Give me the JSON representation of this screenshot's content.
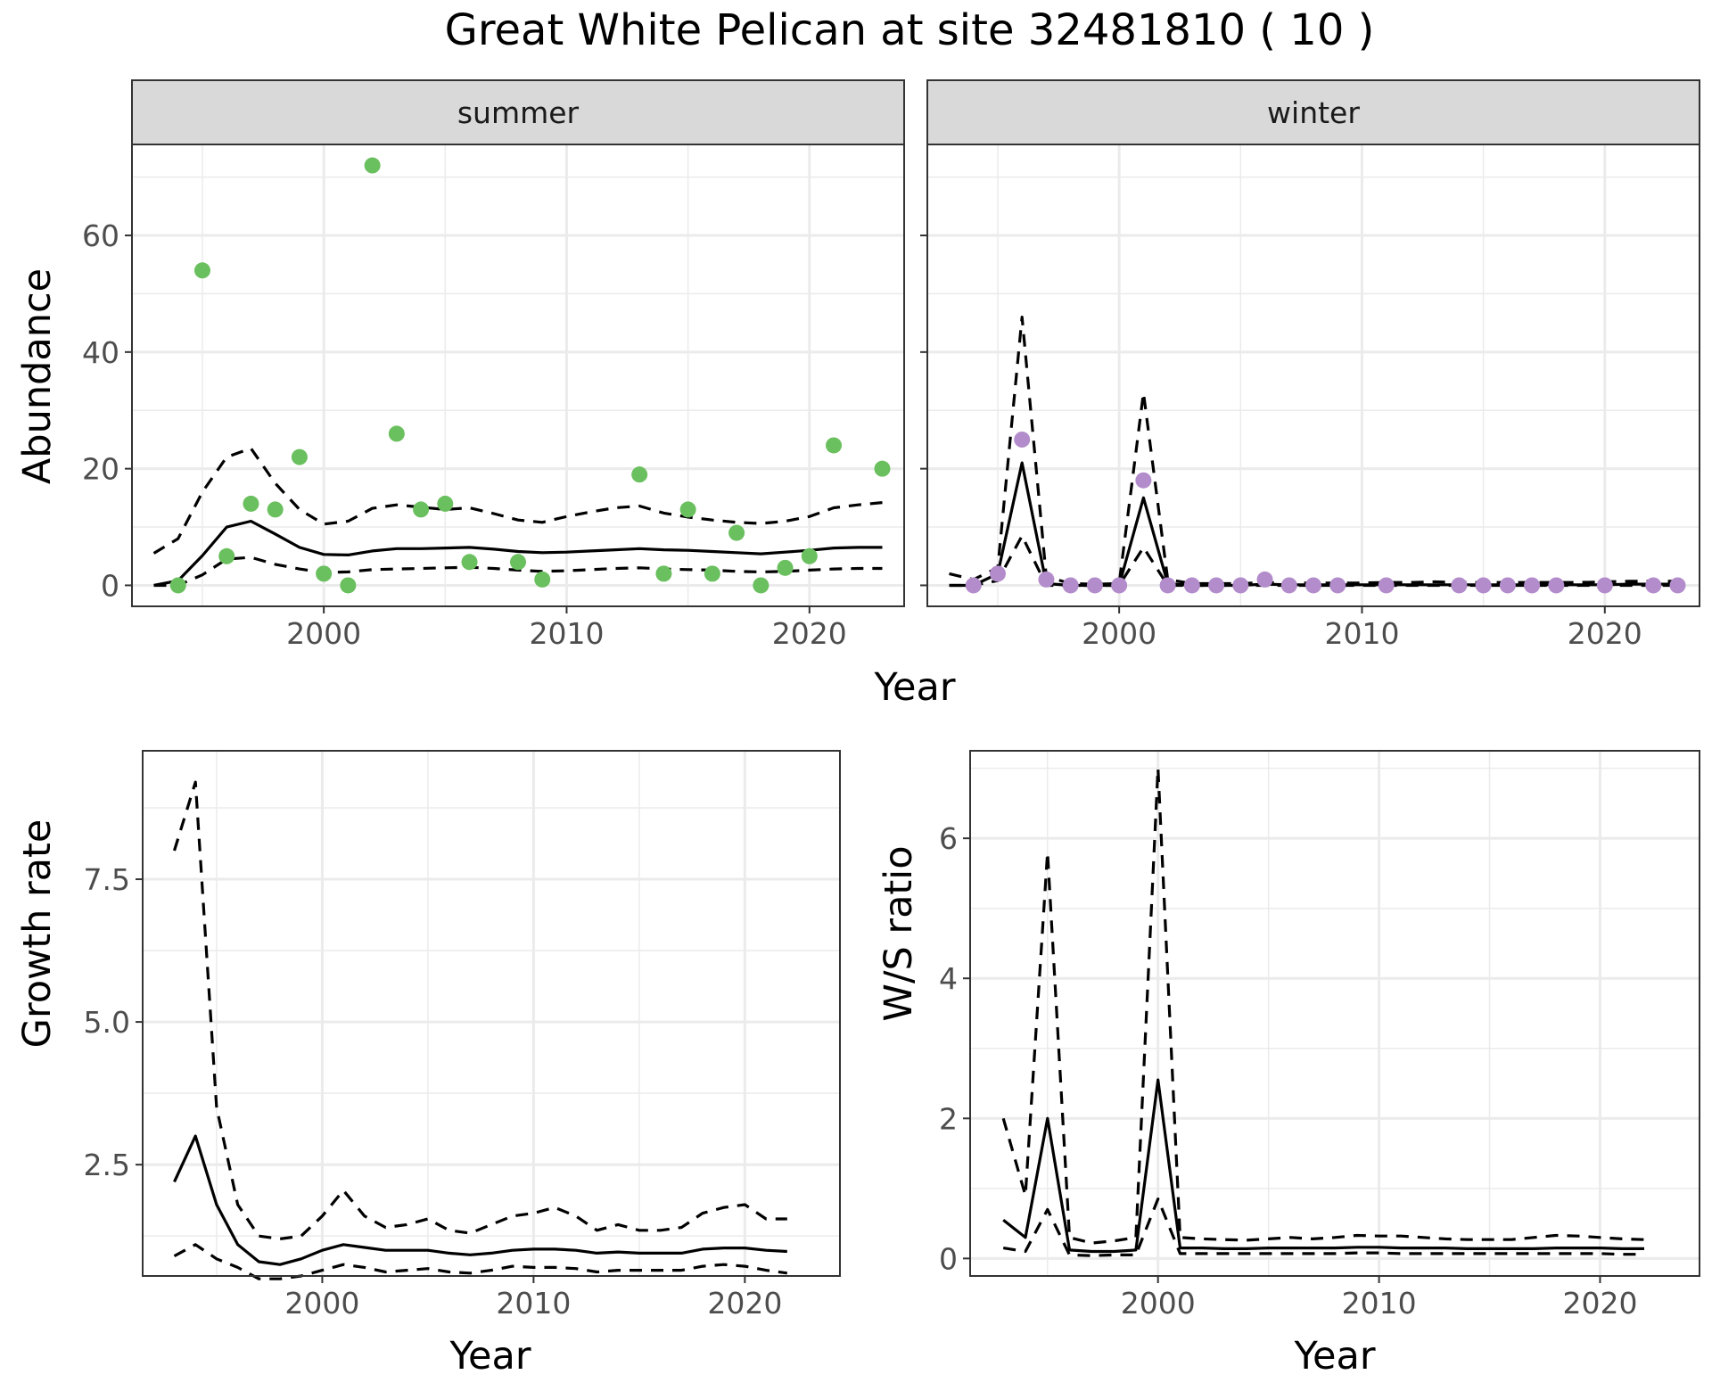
{
  "figure": {
    "title": "Great White Pelican at site 32481810 ( 10 )",
    "abundance_x_title": "Year"
  },
  "colors": {
    "summer_points": "#6abf5e",
    "winter_points": "#b38ccb",
    "lines": "#000000",
    "grid": "#ebebeb",
    "strip_fill": "#d9d9d9"
  },
  "chart_data": [
    {
      "id": "abundance-summer",
      "type": "scatter",
      "facet": "summer",
      "ylabel": "Abundance",
      "xlim": [
        1992.1,
        2023.9
      ],
      "ylim": [
        -3.6,
        75.6
      ],
      "x_ticks": [
        2000,
        2010,
        2020
      ],
      "y_ticks": [
        0,
        20,
        40,
        60
      ],
      "grid": true,
      "points": {
        "x": [
          1994,
          1995,
          1996,
          1997,
          1998,
          1999,
          2000,
          2001,
          2002,
          2003,
          2004,
          2005,
          2006,
          2008,
          2009,
          2013,
          2014,
          2015,
          2016,
          2017,
          2018,
          2019,
          2020,
          2021,
          2023
        ],
        "y": [
          0,
          54,
          5,
          14,
          13,
          22,
          2,
          0,
          72,
          26,
          13,
          14,
          4,
          4,
          1,
          19,
          2,
          13,
          2,
          9,
          0,
          3,
          5,
          24,
          20
        ]
      },
      "series": [
        {
          "name": "",
          "style": "solid",
          "x": [
            1993,
            1994,
            1995,
            1996,
            1997,
            1998,
            1999,
            2000,
            2001,
            2002,
            2003,
            2004,
            2005,
            2006,
            2007,
            2008,
            2009,
            2010,
            2011,
            2012,
            2013,
            2014,
            2015,
            2016,
            2017,
            2018,
            2019,
            2020,
            2021,
            2022,
            2023
          ],
          "y": [
            0,
            0.8,
            5.1,
            10,
            11,
            8.8,
            6.5,
            5.3,
            5.2,
            5.9,
            6.3,
            6.3,
            6.4,
            6.5,
            6.2,
            5.8,
            5.6,
            5.7,
            5.9,
            6.1,
            6.3,
            6.1,
            6,
            5.8,
            5.6,
            5.4,
            5.7,
            6,
            6.4,
            6.5,
            6.5
          ]
        },
        {
          "name": "",
          "style": "dashed",
          "x": [
            1993,
            1994,
            1995,
            1996,
            1997,
            1998,
            1999,
            2000,
            2001,
            2002,
            2003,
            2004,
            2005,
            2006,
            2007,
            2008,
            2009,
            2010,
            2011,
            2012,
            2013,
            2014,
            2015,
            2016,
            2017,
            2018,
            2019,
            2020,
            2021,
            2022,
            2023
          ],
          "y": [
            5.5,
            8,
            16,
            22,
            23.5,
            17.5,
            13,
            10.5,
            11,
            13.2,
            13.8,
            13.4,
            13,
            13.3,
            12.3,
            11.2,
            10.8,
            11.8,
            12.6,
            13.3,
            13.6,
            12.4,
            11.7,
            11.2,
            10.8,
            10.6,
            11,
            11.8,
            13.3,
            13.8,
            14.2
          ]
        },
        {
          "name": "",
          "style": "dashed",
          "x": [
            1993,
            1994,
            1995,
            1996,
            1997,
            1998,
            1999,
            2000,
            2001,
            2002,
            2003,
            2004,
            2005,
            2006,
            2007,
            2008,
            2009,
            2010,
            2011,
            2012,
            2013,
            2014,
            2015,
            2016,
            2017,
            2018,
            2019,
            2020,
            2021,
            2022,
            2023
          ],
          "y": [
            0,
            0,
            1.8,
            4.5,
            4.8,
            3.6,
            2.8,
            2.2,
            2.3,
            2.7,
            2.8,
            2.9,
            3,
            3.1,
            2.9,
            2.6,
            2.4,
            2.5,
            2.7,
            2.9,
            3,
            2.8,
            2.7,
            2.6,
            2.4,
            2.3,
            2.4,
            2.6,
            2.8,
            2.9,
            2.9
          ]
        }
      ]
    },
    {
      "id": "abundance-winter",
      "type": "scatter",
      "facet": "winter",
      "xlim": [
        1992.1,
        2023.9
      ],
      "ylim": [
        -3.6,
        75.6
      ],
      "x_ticks": [
        2000,
        2010,
        2020
      ],
      "y_ticks": [
        0,
        20,
        40,
        60
      ],
      "grid": true,
      "points": {
        "x": [
          1994,
          1995,
          1996,
          1997,
          1998,
          1999,
          2000,
          2001,
          2002,
          2003,
          2004,
          2005,
          2006,
          2007,
          2008,
          2009,
          2011,
          2014,
          2015,
          2016,
          2017,
          2018,
          2020,
          2022,
          2023
        ],
        "y": [
          0,
          2,
          25,
          1,
          0,
          0,
          0,
          18,
          0,
          0,
          0,
          0,
          1,
          0,
          0,
          0,
          0,
          0,
          0,
          0,
          0,
          0,
          0,
          0,
          0
        ]
      },
      "series": [
        {
          "name": "",
          "style": "solid",
          "x": [
            1993,
            1994,
            1995,
            1996,
            1997,
            1998,
            1999,
            2000,
            2001,
            2002,
            2003,
            2004,
            2005,
            2006,
            2007,
            2008,
            2009,
            2010,
            2011,
            2012,
            2013,
            2014,
            2015,
            2016,
            2017,
            2018,
            2019,
            2020,
            2021,
            2022,
            2023
          ],
          "y": [
            0,
            0,
            2,
            21,
            0.3,
            0,
            0,
            0,
            15,
            0.3,
            0,
            0,
            0,
            0.2,
            0.1,
            0.1,
            0.1,
            0.1,
            0.1,
            0.1,
            0.1,
            0.1,
            0.1,
            0.1,
            0.1,
            0.1,
            0.1,
            0.1,
            0.2,
            0.2,
            0.2
          ]
        },
        {
          "name": "",
          "style": "dashed",
          "x": [
            1993,
            1994,
            1995,
            1996,
            1997,
            1998,
            1999,
            2000,
            2001,
            2002,
            2003,
            2004,
            2005,
            2006,
            2007,
            2008,
            2009,
            2010,
            2011,
            2012,
            2013,
            2014,
            2015,
            2016,
            2017,
            2018,
            2019,
            2020,
            2021,
            2022,
            2023
          ],
          "y": [
            2,
            1,
            3,
            46,
            1.5,
            0.3,
            0.2,
            0.3,
            33,
            1,
            0.3,
            0.3,
            0.3,
            0.5,
            0.4,
            0.4,
            0.4,
            0.4,
            0.5,
            0.5,
            0.6,
            0.5,
            0.5,
            0.5,
            0.5,
            0.5,
            0.5,
            0.6,
            0.7,
            0.7,
            0.7
          ]
        },
        {
          "name": "",
          "style": "dashed",
          "x": [
            1993,
            1994,
            1995,
            1996,
            1997,
            1998,
            1999,
            2000,
            2001,
            2002,
            2003,
            2004,
            2005,
            2006,
            2007,
            2008,
            2009,
            2010,
            2011,
            2012,
            2013,
            2014,
            2015,
            2016,
            2017,
            2018,
            2019,
            2020,
            2021,
            2022,
            2023
          ],
          "y": [
            0,
            0,
            0.8,
            8.5,
            0,
            0,
            0,
            0,
            6.5,
            0,
            0,
            0,
            0,
            0,
            0,
            0,
            0,
            0,
            0,
            0,
            0,
            0,
            0,
            0,
            0,
            0,
            0,
            0,
            0,
            0,
            0
          ]
        }
      ]
    },
    {
      "id": "growth-rate",
      "type": "line",
      "xlabel": "Year",
      "ylabel": "Growth rate",
      "xlim": [
        1991.5,
        2024.5
      ],
      "ylim": [
        0.55,
        9.75
      ],
      "x_ticks": [
        2000,
        2010,
        2020
      ],
      "y_ticks": [
        2.5,
        5.0,
        7.5
      ],
      "y_tick_labels": [
        "2.5",
        "5.0",
        "7.5"
      ],
      "grid": true,
      "series": [
        {
          "name": "",
          "style": "solid",
          "x": [
            1993,
            1994,
            1995,
            1996,
            1997,
            1998,
            1999,
            2000,
            2001,
            2002,
            2003,
            2004,
            2005,
            2006,
            2007,
            2008,
            2009,
            2010,
            2011,
            2012,
            2013,
            2014,
            2015,
            2016,
            2017,
            2018,
            2019,
            2020,
            2021,
            2022
          ],
          "y": [
            2.2,
            3.0,
            1.8,
            1.1,
            0.8,
            0.75,
            0.85,
            1.0,
            1.1,
            1.05,
            1.0,
            1.0,
            1.0,
            0.95,
            0.92,
            0.95,
            1.0,
            1.02,
            1.02,
            1.0,
            0.95,
            0.97,
            0.95,
            0.95,
            0.95,
            1.02,
            1.04,
            1.04,
            1.0,
            0.98
          ]
        },
        {
          "name": "",
          "style": "dashed",
          "x": [
            1993,
            1994,
            1995,
            1996,
            1997,
            1998,
            1999,
            2000,
            2001,
            2002,
            2003,
            2004,
            2005,
            2006,
            2007,
            2008,
            2009,
            2010,
            2011,
            2012,
            2013,
            2014,
            2015,
            2016,
            2017,
            2018,
            2019,
            2020,
            2021,
            2022
          ],
          "y": [
            8.0,
            9.2,
            3.5,
            1.8,
            1.25,
            1.2,
            1.25,
            1.6,
            2.05,
            1.6,
            1.4,
            1.45,
            1.55,
            1.35,
            1.3,
            1.45,
            1.6,
            1.65,
            1.75,
            1.6,
            1.35,
            1.45,
            1.35,
            1.35,
            1.4,
            1.65,
            1.75,
            1.8,
            1.55,
            1.55
          ]
        },
        {
          "name": "",
          "style": "dashed",
          "x": [
            1993,
            1994,
            1995,
            1996,
            1997,
            1998,
            1999,
            2000,
            2001,
            2002,
            2003,
            2004,
            2005,
            2006,
            2007,
            2008,
            2009,
            2010,
            2011,
            2012,
            2013,
            2014,
            2015,
            2016,
            2017,
            2018,
            2019,
            2020,
            2021,
            2022
          ],
          "y": [
            0.9,
            1.1,
            0.85,
            0.7,
            0.5,
            0.5,
            0.55,
            0.65,
            0.75,
            0.7,
            0.62,
            0.65,
            0.68,
            0.62,
            0.6,
            0.65,
            0.72,
            0.7,
            0.7,
            0.68,
            0.62,
            0.65,
            0.65,
            0.65,
            0.65,
            0.72,
            0.75,
            0.72,
            0.65,
            0.6
          ]
        }
      ]
    },
    {
      "id": "ws-ratio",
      "type": "line",
      "xlabel": "Year",
      "ylabel": "W/S ratio",
      "xlim": [
        1991.5,
        2024.5
      ],
      "ylim": [
        -0.25,
        7.25
      ],
      "x_ticks": [
        2000,
        2010,
        2020
      ],
      "y_ticks": [
        0,
        2,
        4,
        6
      ],
      "grid": true,
      "series": [
        {
          "name": "",
          "style": "solid",
          "x": [
            1993,
            1994,
            1995,
            1996,
            1997,
            1998,
            1999,
            2000,
            2001,
            2002,
            2003,
            2004,
            2005,
            2006,
            2007,
            2008,
            2009,
            2010,
            2011,
            2012,
            2013,
            2014,
            2015,
            2016,
            2017,
            2018,
            2019,
            2020,
            2021,
            2022
          ],
          "y": [
            0.55,
            0.3,
            2.0,
            0.12,
            0.1,
            0.1,
            0.12,
            2.55,
            0.15,
            0.15,
            0.14,
            0.14,
            0.15,
            0.15,
            0.15,
            0.15,
            0.16,
            0.16,
            0.15,
            0.15,
            0.15,
            0.14,
            0.14,
            0.14,
            0.14,
            0.15,
            0.15,
            0.15,
            0.14,
            0.14
          ]
        },
        {
          "name": "",
          "style": "dashed",
          "x": [
            1993,
            1994,
            1995,
            1996,
            1997,
            1998,
            1999,
            2000,
            2001,
            2002,
            2003,
            2004,
            2005,
            2006,
            2007,
            2008,
            2009,
            2010,
            2011,
            2012,
            2013,
            2014,
            2015,
            2016,
            2017,
            2018,
            2019,
            2020,
            2021,
            2022
          ],
          "y": [
            2.0,
            0.9,
            5.8,
            0.3,
            0.22,
            0.25,
            0.3,
            7.0,
            0.3,
            0.28,
            0.27,
            0.26,
            0.28,
            0.3,
            0.28,
            0.3,
            0.33,
            0.32,
            0.32,
            0.3,
            0.28,
            0.27,
            0.27,
            0.27,
            0.3,
            0.33,
            0.32,
            0.3,
            0.28,
            0.27
          ]
        },
        {
          "name": "",
          "style": "dashed",
          "x": [
            1993,
            1994,
            1995,
            1996,
            1997,
            1998,
            1999,
            2000,
            2001,
            2002,
            2003,
            2004,
            2005,
            2006,
            2007,
            2008,
            2009,
            2010,
            2011,
            2012,
            2013,
            2014,
            2015,
            2016,
            2017,
            2018,
            2019,
            2020,
            2021,
            2022
          ],
          "y": [
            0.15,
            0.1,
            0.7,
            0.05,
            0.04,
            0.05,
            0.05,
            0.85,
            0.07,
            0.07,
            0.07,
            0.07,
            0.07,
            0.07,
            0.07,
            0.07,
            0.08,
            0.08,
            0.07,
            0.07,
            0.07,
            0.07,
            0.07,
            0.07,
            0.07,
            0.07,
            0.07,
            0.07,
            0.06,
            0.06
          ]
        }
      ]
    }
  ]
}
